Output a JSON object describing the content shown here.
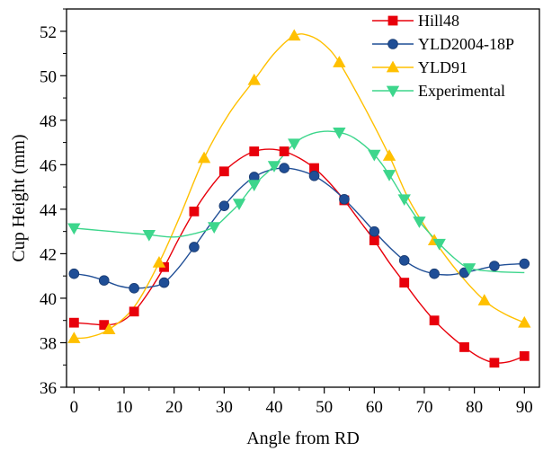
{
  "chart_data": {
    "type": "line",
    "title": "",
    "xlabel": "Angle from RD",
    "ylabel": "Cup Height (mm)",
    "xlim": [
      -1.5,
      93
    ],
    "ylim": [
      36,
      53
    ],
    "x_ticks": [
      0,
      10,
      20,
      30,
      40,
      50,
      60,
      70,
      80,
      90
    ],
    "y_ticks": [
      36,
      38,
      40,
      42,
      44,
      46,
      48,
      50,
      52
    ],
    "grid": false,
    "legend_position": "top-right",
    "series": [
      {
        "name": "Hill48",
        "color": "#e8000b",
        "marker": "square",
        "points": [
          [
            0,
            38.9
          ],
          [
            6,
            38.8
          ],
          [
            12,
            39.4
          ],
          [
            18,
            41.4
          ],
          [
            24,
            43.9
          ],
          [
            30,
            45.7
          ],
          [
            36,
            46.6
          ],
          [
            42,
            46.6
          ],
          [
            48,
            45.85
          ],
          [
            54,
            44.4
          ],
          [
            60,
            42.6
          ],
          [
            66,
            40.7
          ],
          [
            72,
            39.0
          ],
          [
            78,
            37.8
          ],
          [
            84,
            37.1
          ],
          [
            90,
            37.4
          ]
        ],
        "curve": [
          [
            0,
            38.9
          ],
          [
            3,
            38.85
          ],
          [
            6,
            38.8
          ],
          [
            9,
            38.9
          ],
          [
            12,
            39.4
          ],
          [
            15,
            40.3
          ],
          [
            18,
            41.4
          ],
          [
            21,
            42.7
          ],
          [
            24,
            43.9
          ],
          [
            27,
            44.9
          ],
          [
            30,
            45.7
          ],
          [
            33,
            46.25
          ],
          [
            36,
            46.6
          ],
          [
            39,
            46.7
          ],
          [
            42,
            46.6
          ],
          [
            45,
            46.3
          ],
          [
            48,
            45.85
          ],
          [
            51,
            45.2
          ],
          [
            54,
            44.4
          ],
          [
            57,
            43.5
          ],
          [
            60,
            42.6
          ],
          [
            63,
            41.6
          ],
          [
            66,
            40.7
          ],
          [
            69,
            39.8
          ],
          [
            72,
            39.0
          ],
          [
            75,
            38.35
          ],
          [
            78,
            37.8
          ],
          [
            81,
            37.35
          ],
          [
            84,
            37.1
          ],
          [
            87,
            37.15
          ],
          [
            90,
            37.4
          ]
        ]
      },
      {
        "name": "YLD2004-18P",
        "color": "#1f4e96",
        "marker": "circle",
        "points": [
          [
            0,
            41.1
          ],
          [
            6,
            40.8
          ],
          [
            12,
            40.45
          ],
          [
            18,
            40.7
          ],
          [
            24,
            42.3
          ],
          [
            30,
            44.15
          ],
          [
            36,
            45.45
          ],
          [
            42,
            45.85
          ],
          [
            48,
            45.5
          ],
          [
            54,
            44.45
          ],
          [
            60,
            43.0
          ],
          [
            66,
            41.7
          ],
          [
            72,
            41.1
          ],
          [
            78,
            41.15
          ],
          [
            84,
            41.45
          ],
          [
            90,
            41.55
          ]
        ],
        "curve": [
          [
            0,
            41.1
          ],
          [
            3,
            41.0
          ],
          [
            6,
            40.8
          ],
          [
            9,
            40.55
          ],
          [
            12,
            40.45
          ],
          [
            15,
            40.5
          ],
          [
            18,
            40.7
          ],
          [
            21,
            41.4
          ],
          [
            24,
            42.3
          ],
          [
            27,
            43.25
          ],
          [
            30,
            44.15
          ],
          [
            33,
            44.9
          ],
          [
            36,
            45.45
          ],
          [
            39,
            45.75
          ],
          [
            42,
            45.85
          ],
          [
            45,
            45.75
          ],
          [
            48,
            45.5
          ],
          [
            51,
            45.05
          ],
          [
            54,
            44.45
          ],
          [
            57,
            43.75
          ],
          [
            60,
            43.0
          ],
          [
            63,
            42.3
          ],
          [
            66,
            41.7
          ],
          [
            69,
            41.3
          ],
          [
            72,
            41.1
          ],
          [
            75,
            41.05
          ],
          [
            78,
            41.15
          ],
          [
            81,
            41.3
          ],
          [
            84,
            41.45
          ],
          [
            87,
            41.52
          ],
          [
            90,
            41.55
          ]
        ]
      },
      {
        "name": "YLD91",
        "color": "#ffc000",
        "marker": "triangle-up",
        "points": [
          [
            0,
            38.2
          ],
          [
            7,
            38.6
          ],
          [
            17,
            41.6
          ],
          [
            26,
            46.3
          ],
          [
            36,
            49.8
          ],
          [
            44,
            51.8
          ],
          [
            53,
            50.6
          ],
          [
            63,
            46.4
          ],
          [
            72,
            42.6
          ],
          [
            82,
            39.9
          ],
          [
            90,
            38.9
          ]
        ],
        "curve": [
          [
            0,
            38.2
          ],
          [
            3,
            38.25
          ],
          [
            7,
            38.6
          ],
          [
            12,
            39.6
          ],
          [
            17,
            41.6
          ],
          [
            21,
            43.6
          ],
          [
            26,
            46.3
          ],
          [
            31,
            48.3
          ],
          [
            36,
            49.8
          ],
          [
            40,
            51.0
          ],
          [
            44,
            51.8
          ],
          [
            47,
            51.8
          ],
          [
            50,
            51.4
          ],
          [
            53,
            50.6
          ],
          [
            58,
            48.6
          ],
          [
            63,
            46.4
          ],
          [
            67,
            44.4
          ],
          [
            72,
            42.6
          ],
          [
            77,
            41.1
          ],
          [
            82,
            39.9
          ],
          [
            86,
            39.3
          ],
          [
            90,
            38.9
          ]
        ]
      },
      {
        "name": "Experimental",
        "color": "#3dd68c",
        "marker": "triangle-down",
        "points": [
          [
            0,
            43.15
          ],
          [
            15,
            42.85
          ],
          [
            28,
            43.2
          ],
          [
            33,
            44.25
          ],
          [
            36,
            45.1
          ],
          [
            40,
            45.95
          ],
          [
            44,
            46.95
          ],
          [
            53,
            47.45
          ],
          [
            60,
            46.45
          ],
          [
            63,
            45.55
          ],
          [
            66,
            44.45
          ],
          [
            69,
            43.45
          ],
          [
            73,
            42.45
          ],
          [
            79,
            41.35
          ]
        ],
        "curve": [
          [
            0,
            43.15
          ],
          [
            5,
            43.05
          ],
          [
            10,
            42.95
          ],
          [
            15,
            42.85
          ],
          [
            20,
            42.75
          ],
          [
            24,
            42.9
          ],
          [
            28,
            43.2
          ],
          [
            31,
            43.8
          ],
          [
            33,
            44.25
          ],
          [
            36,
            45.1
          ],
          [
            40,
            45.95
          ],
          [
            44,
            46.95
          ],
          [
            47,
            47.35
          ],
          [
            50,
            47.5
          ],
          [
            53,
            47.45
          ],
          [
            56,
            47.2
          ],
          [
            60,
            46.45
          ],
          [
            63,
            45.55
          ],
          [
            66,
            44.45
          ],
          [
            69,
            43.45
          ],
          [
            73,
            42.45
          ],
          [
            76,
            41.8
          ],
          [
            79,
            41.35
          ],
          [
            84,
            41.2
          ],
          [
            90,
            41.15
          ]
        ]
      }
    ]
  }
}
